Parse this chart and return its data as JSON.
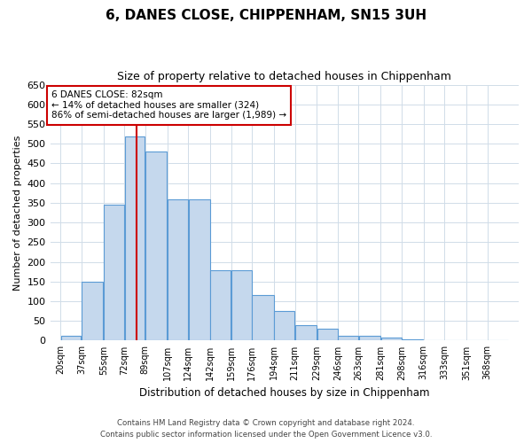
{
  "title": "6, DANES CLOSE, CHIPPENHAM, SN15 3UH",
  "subtitle": "Size of property relative to detached houses in Chippenham",
  "xlabel": "Distribution of detached houses by size in Chippenham",
  "ylabel": "Number of detached properties",
  "categories": [
    "20sqm",
    "37sqm",
    "55sqm",
    "72sqm",
    "89sqm",
    "107sqm",
    "124sqm",
    "142sqm",
    "159sqm",
    "176sqm",
    "194sqm",
    "211sqm",
    "229sqm",
    "246sqm",
    "263sqm",
    "281sqm",
    "298sqm",
    "316sqm",
    "333sqm",
    "351sqm",
    "368sqm"
  ],
  "values": [
    13,
    150,
    345,
    518,
    480,
    358,
    358,
    178,
    178,
    115,
    75,
    40,
    30,
    13,
    13,
    8,
    3,
    1,
    1,
    1,
    1
  ],
  "bar_color": "#c5d8ed",
  "bar_edge_color": "#5b9bd5",
  "grid_color": "#d0dce8",
  "background_color": "#ffffff",
  "annotation_line1": "6 DANES CLOSE: 82sqm",
  "annotation_line2": "← 14% of detached houses are smaller (324)",
  "annotation_line3": "86% of semi-detached houses are larger (1,989) →",
  "annotation_box_color": "#ffffff",
  "annotation_box_edge_color": "#cc0000",
  "redline_color": "#cc0000",
  "ylim": [
    0,
    650
  ],
  "yticks": [
    0,
    50,
    100,
    150,
    200,
    250,
    300,
    350,
    400,
    450,
    500,
    550,
    600,
    650
  ],
  "footer_line1": "Contains HM Land Registry data © Crown copyright and database right 2024.",
  "footer_line2": "Contains public sector information licensed under the Open Government Licence v3.0."
}
